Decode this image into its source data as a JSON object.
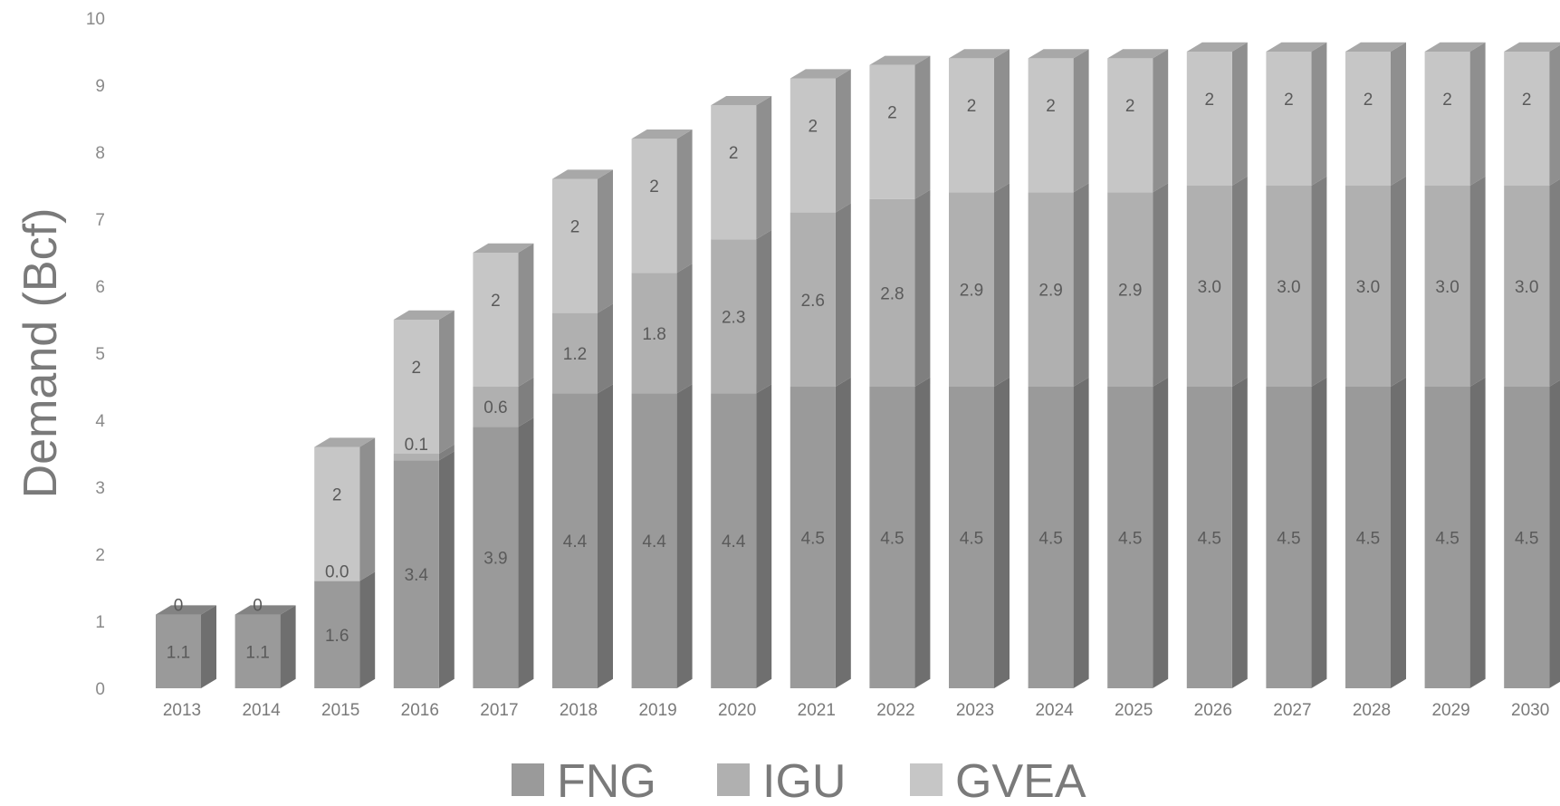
{
  "chart_data": {
    "type": "bar",
    "stacked": true,
    "three_d": true,
    "title": "",
    "xlabel": "",
    "ylabel": "Demand (Bcf)",
    "ylim": [
      0,
      10
    ],
    "yticks": [
      "0",
      "1",
      "2",
      "3",
      "4",
      "5",
      "6",
      "7",
      "8",
      "9",
      "10"
    ],
    "grid": false,
    "legend_position": "bottom",
    "categories": [
      "2013",
      "2014",
      "2015",
      "2016",
      "2017",
      "2018",
      "2019",
      "2020",
      "2021",
      "2022",
      "2023",
      "2024",
      "2025",
      "2026",
      "2027",
      "2028",
      "2029",
      "2030"
    ],
    "series": [
      {
        "name": "FNG",
        "color": "#9a9a9a",
        "values": [
          1.1,
          1.1,
          1.6,
          3.4,
          3.9,
          4.4,
          4.4,
          4.4,
          4.5,
          4.5,
          4.5,
          4.5,
          4.5,
          4.5,
          4.5,
          4.5,
          4.5,
          4.5
        ],
        "labels": [
          "1.1",
          "1.1",
          "1.6",
          "3.4",
          "3.9",
          "4.4",
          "4.4",
          "4.4",
          "4.5",
          "4.5",
          "4.5",
          "4.5",
          "4.5",
          "4.5",
          "4.5",
          "4.5",
          "4.5",
          "4.5"
        ]
      },
      {
        "name": "IGU",
        "color": "#b0b0b0",
        "values": [
          0,
          0,
          0.0,
          0.1,
          0.6,
          1.2,
          1.8,
          2.3,
          2.6,
          2.8,
          2.9,
          2.9,
          2.9,
          3.0,
          3.0,
          3.0,
          3.0,
          3.0
        ],
        "labels": [
          "0",
          "0",
          "0.0",
          "0.1",
          "0.6",
          "1.2",
          "1.8",
          "2.3",
          "2.6",
          "2.8",
          "2.9",
          "2.9",
          "2.9",
          "3.0",
          "3.0",
          "3.0",
          "3.0",
          "3.0"
        ]
      },
      {
        "name": "GVEA",
        "color": "#c6c6c6",
        "values": [
          0,
          0,
          2,
          2,
          2,
          2,
          2,
          2,
          2,
          2,
          2,
          2,
          2,
          2,
          2,
          2,
          2,
          2
        ],
        "labels": [
          "",
          "",
          "2",
          "2",
          "2",
          "2",
          "2",
          "2",
          "2",
          "2",
          "2",
          "2",
          "2",
          "2",
          "2",
          "2",
          "2",
          "2"
        ]
      }
    ]
  }
}
